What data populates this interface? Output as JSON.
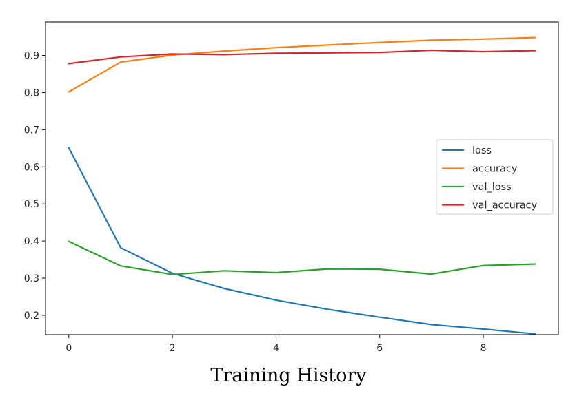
{
  "caption": "Training History",
  "chart_data": {
    "type": "line",
    "title": "",
    "xlabel": "",
    "ylabel": "",
    "x": [
      0,
      1,
      2,
      3,
      4,
      5,
      6,
      7,
      8,
      9
    ],
    "xlim": [
      -0.45,
      9.45
    ],
    "ylim": [
      0.148,
      0.99
    ],
    "xticks": [
      0,
      2,
      4,
      6,
      8
    ],
    "xtick_labels": [
      "0",
      "2",
      "4",
      "6",
      "8"
    ],
    "yticks": [
      0.2,
      0.3,
      0.4,
      0.5,
      0.6,
      0.7,
      0.8,
      0.9
    ],
    "ytick_labels": [
      "0.2",
      "0.3",
      "0.4",
      "0.5",
      "0.6",
      "0.7",
      "0.8",
      "0.9"
    ],
    "grid": false,
    "legend_position": "center-right",
    "series": [
      {
        "name": "loss",
        "color": "#1f77b4",
        "values": [
          0.651,
          0.382,
          0.313,
          0.272,
          0.241,
          0.216,
          0.195,
          0.175,
          0.163,
          0.15
        ]
      },
      {
        "name": "accuracy",
        "color": "#ff7f0e",
        "values": [
          0.802,
          0.882,
          0.901,
          0.912,
          0.921,
          0.928,
          0.935,
          0.941,
          0.944,
          0.948
        ]
      },
      {
        "name": "val_loss",
        "color": "#2ca02c",
        "values": [
          0.399,
          0.333,
          0.31,
          0.32,
          0.315,
          0.325,
          0.324,
          0.311,
          0.334,
          0.338
        ]
      },
      {
        "name": "val_accuracy",
        "color": "#d62728",
        "values": [
          0.878,
          0.896,
          0.904,
          0.902,
          0.906,
          0.907,
          0.908,
          0.914,
          0.91,
          0.913
        ]
      }
    ]
  }
}
